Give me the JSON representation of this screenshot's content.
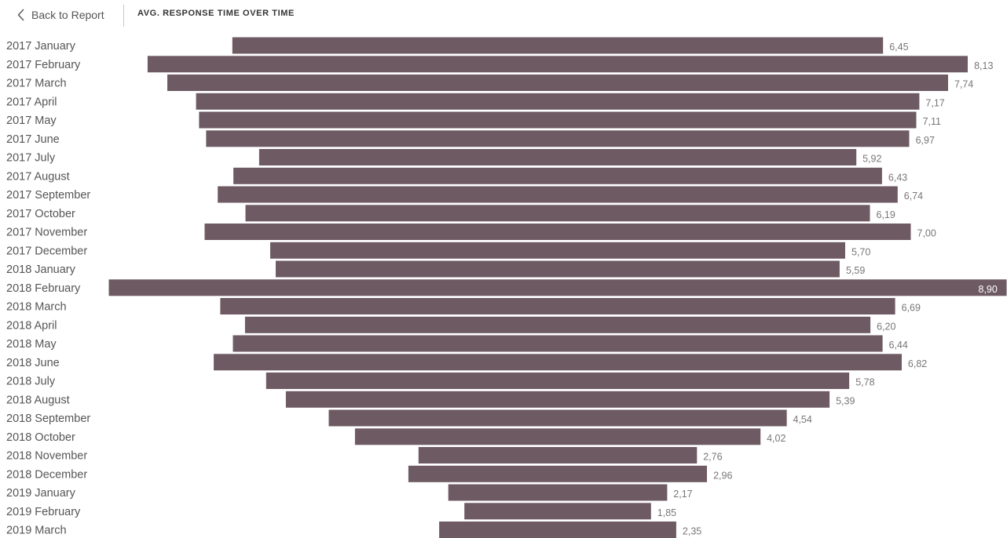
{
  "header": {
    "back_label": "Back to Report",
    "title": "AVG. RESPONSE TIME OVER TIME"
  },
  "colors": {
    "bar": "#6e5a63",
    "label": "#555555",
    "value_label": "#777777"
  },
  "chart_data": {
    "type": "bar",
    "orientation": "horizontal-centered",
    "title": "AVG. RESPONSE TIME OVER TIME",
    "categories": [
      "2017 January",
      "2017 February",
      "2017 March",
      "2017 April",
      "2017 May",
      "2017 June",
      "2017 July",
      "2017 August",
      "2017 September",
      "2017 October",
      "2017 November",
      "2017 December",
      "2018 January",
      "2018 February",
      "2018 March",
      "2018 April",
      "2018 May",
      "2018 June",
      "2018 July",
      "2018 August",
      "2018 September",
      "2018 October",
      "2018 November",
      "2018 December",
      "2019 January",
      "2019 February",
      "2019 March"
    ],
    "values": [
      6.45,
      8.13,
      7.74,
      7.17,
      7.11,
      6.97,
      5.92,
      6.43,
      6.74,
      6.19,
      7.0,
      5.7,
      5.59,
      8.9,
      6.69,
      6.2,
      6.44,
      6.82,
      5.78,
      5.39,
      4.54,
      4.02,
      2.76,
      2.96,
      2.17,
      1.85,
      2.35
    ],
    "value_labels": [
      "6,45",
      "8,13",
      "7,74",
      "7,17",
      "7,11",
      "6,97",
      "5,92",
      "6,43",
      "6,74",
      "6,19",
      "7,00",
      "5,70",
      "5,59",
      "8,90",
      "6,69",
      "6,20",
      "6,44",
      "6,82",
      "5,78",
      "5,39",
      "4,54",
      "4,02",
      "2,76",
      "2,96",
      "2,17",
      "1,85",
      "2,35"
    ],
    "xlim": [
      0,
      8.9
    ],
    "grid": false,
    "legend": "none"
  }
}
